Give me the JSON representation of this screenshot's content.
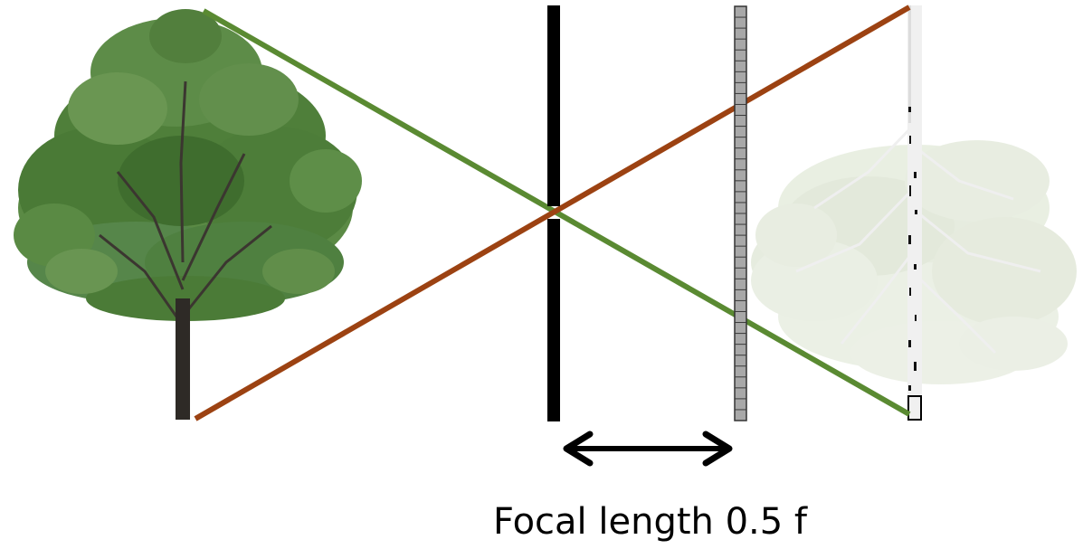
{
  "caption": "Focal length 0.5 f",
  "colors": {
    "upper_ray": "#5a8a32",
    "lower_ray": "#9c4212",
    "aperture": "#000000",
    "sensor_fill": "#a8a8a8",
    "sensor_cell": "#8c8c8c",
    "tree_foliage": "#4f7f3a",
    "tree_trunk": "#2e2a26",
    "image_ghost": "#cfd9c4"
  },
  "icons": {
    "object": "tree",
    "image": "inverted-tree",
    "measure": "double-headed-arrow"
  }
}
